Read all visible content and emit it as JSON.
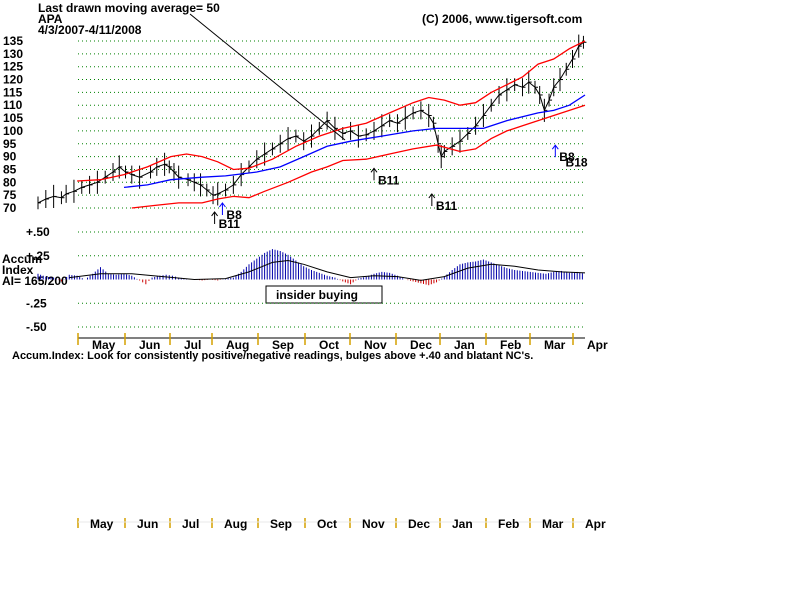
{
  "chart_data": [
    {
      "type": "ohlc",
      "header": {
        "ma_note": "Last drawn moving average= 50",
        "ticker": "APA",
        "date_range": "4/3/2007-4/11/2008",
        "copyright": "(C) 2006, www.tigersoft.com"
      },
      "y_ticks": [
        135,
        130,
        125,
        120,
        115,
        110,
        105,
        100,
        95,
        90,
        85,
        80,
        75,
        70
      ],
      "ylim": [
        70,
        137
      ],
      "x_labels": [
        "May",
        "Jun",
        "Jul",
        "Aug",
        "Sep",
        "Oct",
        "Nov",
        "Dec",
        "Jan",
        "Feb",
        "Mar",
        "Apr"
      ],
      "grid": "dotted-horizontal",
      "series": [
        {
          "role": "price_close",
          "color": "#000000",
          "points": [
            [
              0,
              72
            ],
            [
              0.5,
              73.5
            ],
            [
              1,
              74.5
            ],
            [
              1.5,
              74
            ],
            [
              1.8,
              75.5
            ],
            [
              2.3,
              76.5
            ],
            [
              2.8,
              78
            ],
            [
              3.3,
              79
            ],
            [
              3.8,
              80
            ],
            [
              4.3,
              82
            ],
            [
              4.8,
              84
            ],
            [
              5.2,
              86
            ],
            [
              5.6,
              84
            ],
            [
              6,
              83
            ],
            [
              6.5,
              82
            ],
            [
              7.2,
              84
            ],
            [
              7.6,
              86
            ],
            [
              8.1,
              87
            ],
            [
              8.4,
              86
            ],
            [
              8.7,
              84
            ],
            [
              9,
              82
            ],
            [
              9.6,
              81
            ],
            [
              10,
              80
            ],
            [
              10.4,
              79
            ],
            [
              10.8,
              77
            ],
            [
              11.2,
              75
            ],
            [
              11.5,
              75.5
            ],
            [
              12,
              77
            ],
            [
              12.5,
              79
            ],
            [
              13,
              83
            ],
            [
              13.5,
              86
            ],
            [
              14,
              89
            ],
            [
              14.5,
              91
            ],
            [
              15,
              93
            ],
            [
              15.5,
              95
            ],
            [
              16,
              97
            ],
            [
              16.5,
              98
            ],
            [
              17,
              96
            ],
            [
              17.5,
              98
            ],
            [
              18,
              101
            ],
            [
              18.5,
              104
            ],
            [
              19,
              101
            ],
            [
              19.5,
              99
            ],
            [
              20,
              100
            ],
            [
              20.5,
              98
            ],
            [
              21,
              98.5
            ],
            [
              21.5,
              100
            ],
            [
              22,
              102
            ],
            [
              22.5,
              104
            ],
            [
              23,
              103
            ],
            [
              23.5,
              105
            ],
            [
              24,
              107
            ],
            [
              24.5,
              108
            ],
            [
              25,
              106
            ],
            [
              25.3,
              103
            ],
            [
              25.6,
              95
            ],
            [
              25.8,
              90
            ],
            [
              26,
              92
            ],
            [
              26.5,
              94
            ],
            [
              27,
              96
            ],
            [
              27.5,
              99
            ],
            [
              28,
              102
            ],
            [
              28.5,
              106
            ],
            [
              29,
              110
            ],
            [
              29.5,
              114
            ],
            [
              30,
              116
            ],
            [
              30.5,
              118
            ],
            [
              31,
              117
            ],
            [
              31.4,
              119
            ],
            [
              31.8,
              117
            ],
            [
              32.1,
              114
            ],
            [
              32.4,
              108
            ],
            [
              32.7,
              112
            ],
            [
              33,
              117
            ],
            [
              33.4,
              120
            ],
            [
              33.8,
              124
            ],
            [
              34.2,
              128
            ],
            [
              34.6,
              133
            ],
            [
              34.9,
              134.5
            ]
          ]
        },
        {
          "role": "ma_50",
          "color": "#0000ff",
          "points": [
            [
              5.5,
              78
            ],
            [
              7,
              79
            ],
            [
              8.5,
              81
            ],
            [
              10.5,
              82
            ],
            [
              12,
              82.5
            ],
            [
              14,
              84
            ],
            [
              15.5,
              86
            ],
            [
              17,
              90
            ],
            [
              18.5,
              94
            ],
            [
              20,
              96
            ],
            [
              22,
              98
            ],
            [
              24,
              100
            ],
            [
              25.5,
              101
            ],
            [
              27,
              101
            ],
            [
              28.5,
              101
            ],
            [
              30,
              104
            ],
            [
              32,
              107
            ],
            [
              33,
              108
            ],
            [
              34,
              110
            ],
            [
              35,
              114
            ]
          ]
        },
        {
          "role": "band_upper",
          "color": "#ff0000",
          "points": [
            [
              2.5,
              80.5
            ],
            [
              4,
              81
            ],
            [
              5.5,
              83
            ],
            [
              7,
              86
            ],
            [
              8.5,
              90
            ],
            [
              9.5,
              91
            ],
            [
              10.5,
              90
            ],
            [
              11.5,
              88
            ],
            [
              12.5,
              85
            ],
            [
              13.5,
              85.5
            ],
            [
              15,
              89
            ],
            [
              16.5,
              94
            ],
            [
              18,
              98
            ],
            [
              19.5,
              101
            ],
            [
              21,
              103
            ],
            [
              22.5,
              107
            ],
            [
              24,
              111
            ],
            [
              25,
              113
            ],
            [
              26,
              112
            ],
            [
              27,
              110
            ],
            [
              28,
              111
            ],
            [
              29,
              115
            ],
            [
              30,
              118
            ],
            [
              31,
              121
            ],
            [
              32,
              126
            ],
            [
              33,
              128
            ],
            [
              34,
              132
            ],
            [
              35,
              135
            ]
          ]
        },
        {
          "role": "band_lower",
          "color": "#ff0000",
          "points": [
            [
              6,
              70
            ],
            [
              7.5,
              71
            ],
            [
              9,
              72
            ],
            [
              10.5,
              72
            ],
            [
              11.5,
              73.5
            ],
            [
              12.5,
              74.5
            ],
            [
              13.5,
              74
            ],
            [
              14.5,
              76.5
            ],
            [
              16,
              80
            ],
            [
              17.5,
              84
            ],
            [
              18.5,
              86
            ],
            [
              19.5,
              88.5
            ],
            [
              21,
              89
            ],
            [
              22.5,
              91
            ],
            [
              24,
              93
            ],
            [
              25.5,
              94.5
            ],
            [
              27,
              92
            ],
            [
              28,
              93
            ],
            [
              29,
              97
            ],
            [
              30,
              100
            ],
            [
              31,
              102
            ],
            [
              32,
              104
            ],
            [
              33,
              106
            ],
            [
              34,
              108
            ],
            [
              35,
              110
            ]
          ]
        }
      ],
      "annotations": [
        {
          "text": "B11",
          "x": 11.3,
          "y": 63,
          "arrow": "up",
          "color": "#000000"
        },
        {
          "text": "B8",
          "x": 11.8,
          "y": 66.5,
          "arrow": "up",
          "color": "#0000ff"
        },
        {
          "text": "B11",
          "x": 21.5,
          "y": 80,
          "arrow": "up",
          "color": "#000000"
        },
        {
          "text": "B11",
          "x": 25.2,
          "y": 70,
          "arrow": "up",
          "color": "#000000"
        },
        {
          "text": "B8",
          "x": 33.1,
          "y": 89,
          "arrow": "up",
          "color": "#0000ff"
        },
        {
          "text": "B18",
          "x": 33.5,
          "y": 87,
          "arrow": "none",
          "color": "#000000"
        }
      ]
    },
    {
      "type": "area",
      "title_lines": [
        "Accum",
        "Index",
        "AI= 165/200"
      ],
      "y_ticks": [
        "+.50",
        "+.25",
        "-.25",
        "-.50"
      ],
      "y_tick_values": [
        0.5,
        0.25,
        -0.25,
        -0.5
      ],
      "ylim": [
        -0.55,
        0.55
      ],
      "positive_color": "#0000aa",
      "negative_color": "#cc0000",
      "series": [
        {
          "role": "accum_index",
          "points": [
            [
              0,
              0.06
            ],
            [
              0.5,
              0.03
            ],
            [
              1,
              0.02
            ],
            [
              1.5,
              -0.02
            ],
            [
              2,
              0.05
            ],
            [
              2.5,
              0.04
            ],
            [
              3,
              0.0
            ],
            [
              3.5,
              0.06
            ],
            [
              4,
              0.13
            ],
            [
              4.5,
              0.06
            ],
            [
              5,
              0.05
            ],
            [
              5.5,
              0.06
            ],
            [
              6,
              0.04
            ],
            [
              6.5,
              -0.01
            ],
            [
              6.9,
              -0.05
            ],
            [
              7.3,
              0.02
            ],
            [
              7.8,
              0.04
            ],
            [
              8.2,
              0.05
            ],
            [
              8.6,
              0.04
            ],
            [
              9,
              0.02
            ],
            [
              9.5,
              0.01
            ],
            [
              10,
              0.0
            ],
            [
              10.5,
              -0.01
            ],
            [
              11,
              0.0
            ],
            [
              11.5,
              -0.01
            ],
            [
              12,
              0.01
            ],
            [
              12.5,
              0.02
            ],
            [
              13,
              0.08
            ],
            [
              13.5,
              0.16
            ],
            [
              14,
              0.22
            ],
            [
              14.5,
              0.28
            ],
            [
              15,
              0.32
            ],
            [
              15.5,
              0.3
            ],
            [
              16,
              0.26
            ],
            [
              16.5,
              0.2
            ],
            [
              17,
              0.14
            ],
            [
              17.5,
              0.1
            ],
            [
              18,
              0.07
            ],
            [
              18.5,
              0.04
            ],
            [
              19,
              0.02
            ],
            [
              19.5,
              -0.02
            ],
            [
              20,
              -0.05
            ],
            [
              20.5,
              0.01
            ],
            [
              21,
              0.03
            ],
            [
              21.5,
              0.06
            ],
            [
              22,
              0.08
            ],
            [
              22.5,
              0.07
            ],
            [
              23,
              0.04
            ],
            [
              23.5,
              0.0
            ],
            [
              24,
              -0.02
            ],
            [
              24.5,
              -0.04
            ],
            [
              25,
              -0.06
            ],
            [
              25.5,
              -0.03
            ],
            [
              26,
              0.03
            ],
            [
              26.5,
              0.1
            ],
            [
              27,
              0.16
            ],
            [
              27.5,
              0.18
            ],
            [
              28,
              0.19
            ],
            [
              28.5,
              0.21
            ],
            [
              29,
              0.18
            ],
            [
              29.5,
              0.15
            ],
            [
              30,
              0.12
            ],
            [
              30.5,
              0.1
            ],
            [
              31,
              0.09
            ],
            [
              31.5,
              0.08
            ],
            [
              32,
              0.07
            ],
            [
              32.5,
              0.06
            ],
            [
              33,
              0.08
            ],
            [
              33.5,
              0.09
            ],
            [
              34,
              0.07
            ],
            [
              34.5,
              0.08
            ],
            [
              35,
              0.06
            ]
          ]
        },
        {
          "role": "accum_ma",
          "color": "#000000",
          "points": [
            [
              2,
              0.02
            ],
            [
              4,
              0.06
            ],
            [
              6,
              0.06
            ],
            [
              8,
              0.03
            ],
            [
              10,
              0.0
            ],
            [
              12,
              0.01
            ],
            [
              13.5,
              0.08
            ],
            [
              15,
              0.18
            ],
            [
              16,
              0.2
            ],
            [
              17,
              0.16
            ],
            [
              18.5,
              0.08
            ],
            [
              20,
              0.02
            ],
            [
              21.5,
              0.04
            ],
            [
              23,
              0.03
            ],
            [
              24.5,
              -0.01
            ],
            [
              26,
              0.03
            ],
            [
              27.5,
              0.12
            ],
            [
              29,
              0.16
            ],
            [
              30.5,
              0.14
            ],
            [
              32,
              0.1
            ],
            [
              33.5,
              0.08
            ],
            [
              35,
              0.07
            ]
          ]
        }
      ],
      "callout": "insider buying",
      "footer": "Accum.Index: Look for consistently positive/negative readings, bulges above +.40 and blatant NC's."
    }
  ]
}
